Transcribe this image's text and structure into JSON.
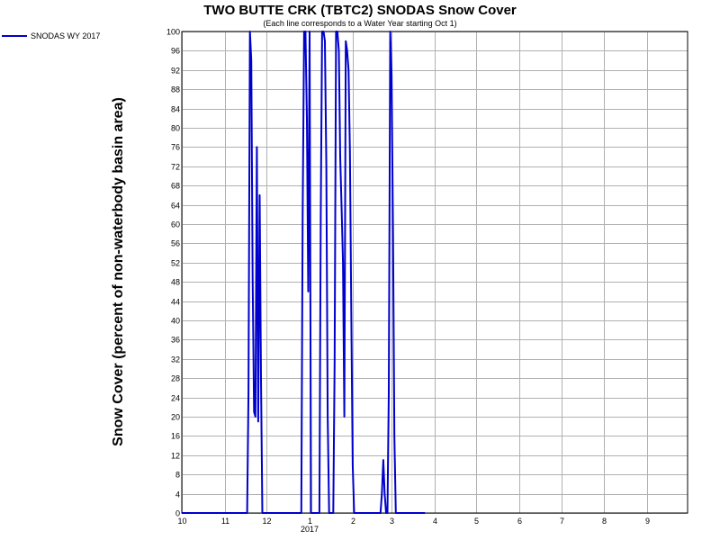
{
  "chart_data": {
    "type": "line",
    "title": "TWO BUTTE CRK (TBTC2) SNODAS Snow Cover",
    "subtitle": "(Each line corresponds to a Water Year starting Oct 1)",
    "xlabel": "",
    "ylabel": "Snow Cover (percent of non-waterbody basin area)",
    "ylim": [
      0,
      100
    ],
    "yticks": [
      0,
      4,
      8,
      12,
      16,
      20,
      24,
      28,
      32,
      36,
      40,
      44,
      48,
      52,
      56,
      60,
      64,
      68,
      72,
      76,
      80,
      84,
      88,
      92,
      96,
      100
    ],
    "xlim": [
      "2016-10-01",
      "2017-09-30"
    ],
    "x_tick_dates": [
      "2016-10-01",
      "2016-11-01",
      "2016-12-01",
      "2017-01-01",
      "2017-02-01",
      "2017-03-01",
      "2017-04-01",
      "2017-05-01",
      "2017-06-01",
      "2017-07-01",
      "2017-08-01",
      "2017-09-01"
    ],
    "x_tick_labels": [
      "10",
      "11",
      "12",
      "1",
      "2",
      "3",
      "4",
      "5",
      "6",
      "7",
      "8",
      "9"
    ],
    "year_label": "2017",
    "year_label_date": "2017-01-01",
    "grid": true,
    "legend_position": "top-left",
    "series": [
      {
        "name": "SNODAS WY 2017",
        "color": "#0000cc",
        "x": [
          "2016-10-01",
          "2016-11-17",
          "2016-11-18",
          "2016-11-19",
          "2016-11-20",
          "2016-11-21",
          "2016-11-22",
          "2016-11-23",
          "2016-11-24",
          "2016-11-25",
          "2016-11-26",
          "2016-11-27",
          "2016-11-28",
          "2016-12-01",
          "2016-12-26",
          "2016-12-27",
          "2016-12-28",
          "2016-12-29",
          "2016-12-30",
          "2016-12-31",
          "2017-01-01",
          "2017-01-02",
          "2017-01-08",
          "2017-01-09",
          "2017-01-10",
          "2017-01-11",
          "2017-01-12",
          "2017-01-13",
          "2017-01-14",
          "2017-01-15",
          "2017-01-18",
          "2017-01-19",
          "2017-01-20",
          "2017-01-21",
          "2017-01-22",
          "2017-01-23",
          "2017-01-24",
          "2017-01-25",
          "2017-01-26",
          "2017-01-27",
          "2017-01-28",
          "2017-01-29",
          "2017-01-30",
          "2017-01-31",
          "2017-02-01",
          "2017-02-02",
          "2017-02-03",
          "2017-02-04",
          "2017-02-21",
          "2017-02-22",
          "2017-02-23",
          "2017-02-24",
          "2017-02-25",
          "2017-02-26",
          "2017-02-27",
          "2017-02-28",
          "2017-03-01",
          "2017-03-02",
          "2017-03-03",
          "2017-03-04",
          "2017-03-05",
          "2017-03-25"
        ],
        "values": [
          0,
          0,
          25,
          100,
          94,
          49,
          21,
          20,
          76,
          19,
          66,
          28,
          0,
          0,
          0,
          62,
          100,
          100,
          82,
          46,
          100,
          0,
          0,
          62,
          100,
          100,
          98,
          72,
          20,
          0,
          0,
          31,
          100,
          100,
          96,
          74,
          63,
          52,
          20,
          98,
          96,
          92,
          75,
          40,
          10,
          0,
          0,
          0,
          0,
          4,
          11,
          4,
          0,
          0,
          25,
          100,
          91,
          58,
          16,
          0,
          0,
          0
        ]
      }
    ]
  }
}
